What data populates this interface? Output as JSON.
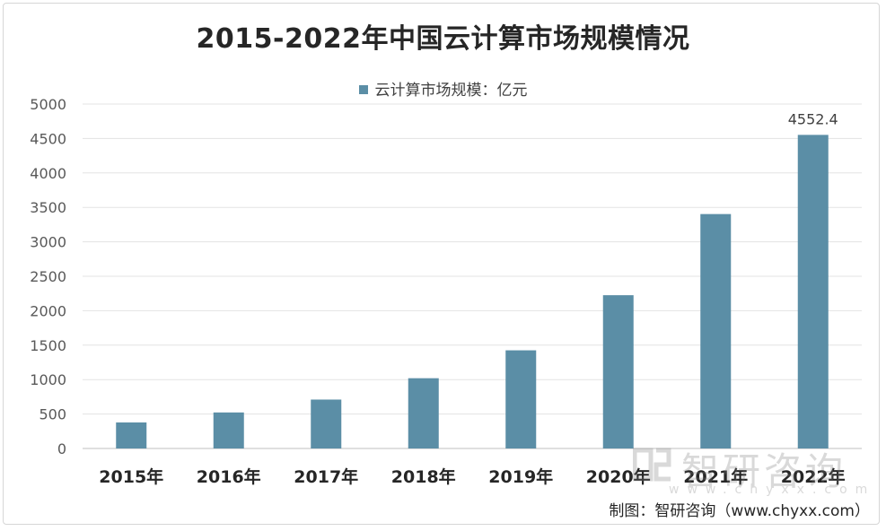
{
  "chart_data": {
    "type": "bar",
    "title": "2015-2022年中国云计算市场规模情况",
    "categories": [
      "2015年",
      "2016年",
      "2017年",
      "2018年",
      "2019年",
      "2020年",
      "2021年",
      "2022年"
    ],
    "series": [
      {
        "name": "云计算市场规模：亿元",
        "values": [
          378,
          523,
          710,
          1020,
          1425,
          2225,
          3403,
          4552.4
        ],
        "color": "#5b8ea6"
      }
    ],
    "data_labels": [
      {
        "category": "2022年",
        "text": "4552.4"
      }
    ],
    "yticks": [
      "0",
      "500",
      "1000",
      "1500",
      "2000",
      "2500",
      "3000",
      "3500",
      "4000",
      "4500",
      "5000"
    ],
    "ylim": [
      0,
      5000
    ],
    "grid": true,
    "legend_position": "top"
  },
  "watermark": {
    "name": "智研咨询",
    "url": "www.chyxx.com"
  },
  "source": "制图：智研咨询（www.chyxx.com）"
}
